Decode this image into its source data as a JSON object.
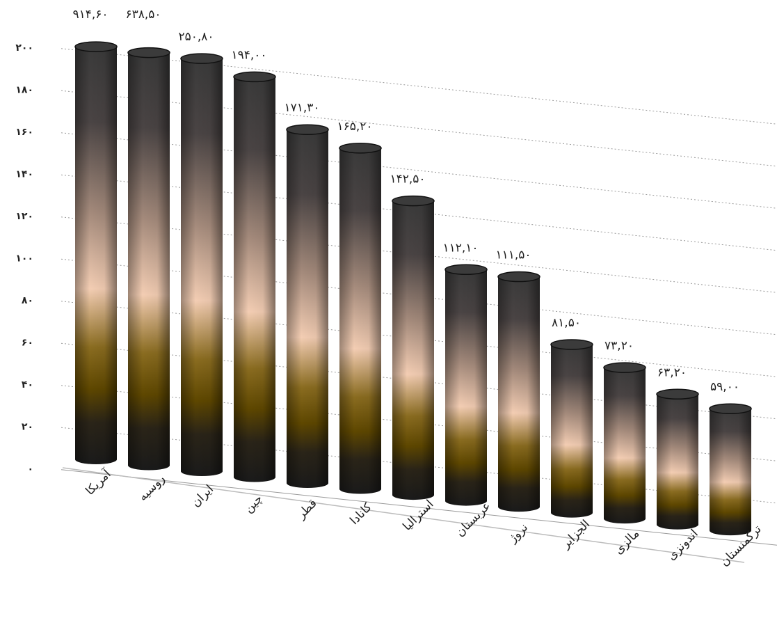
{
  "chart_data": {
    "type": "bar",
    "style": "3d-cylinder",
    "title": "",
    "xlabel": "",
    "ylabel": "",
    "ylim": [
      0,
      200
    ],
    "y_ticks": [
      "۰",
      "۲۰",
      "۴۰",
      "۶۰",
      "۸۰",
      "۱۰۰",
      "۱۲۰",
      "۱۴۰",
      "۱۶۰",
      "۱۸۰",
      "۲۰۰"
    ],
    "grid": true,
    "categories": [
      "آمریکا",
      "روسیه",
      "ایران",
      "چین",
      "قطر",
      "کانادا",
      "استرالیا",
      "عربستان",
      "نروژ",
      "الجزایر",
      "مالزی",
      "اندونزی",
      "ترکمنستان"
    ],
    "values": [
      914.6,
      638.5,
      250.8,
      194.0,
      171.3,
      165.2,
      142.5,
      112.1,
      111.5,
      81.5,
      73.2,
      63.2,
      59.0
    ],
    "value_labels": [
      "۹۱۴,۶۰",
      "۶۳۸,۵۰",
      "۲۵۰,۸۰",
      "۱۹۴,۰۰",
      "۱۷۱,۳۰",
      "۱۶۵,۲۰",
      "۱۴۲,۵۰",
      "۱۱۲,۱۰",
      "۱۱۱,۵۰",
      "۸۱,۵۰",
      "۷۳,۲۰",
      "۶۳,۲۰",
      "۵۹,۰۰"
    ],
    "colors": {
      "dark": "#1c1c1c",
      "gold": "#6b5200",
      "peach": "#f3cdb3",
      "top": "#3a3a3a",
      "grid": "#9a9a9a"
    }
  }
}
